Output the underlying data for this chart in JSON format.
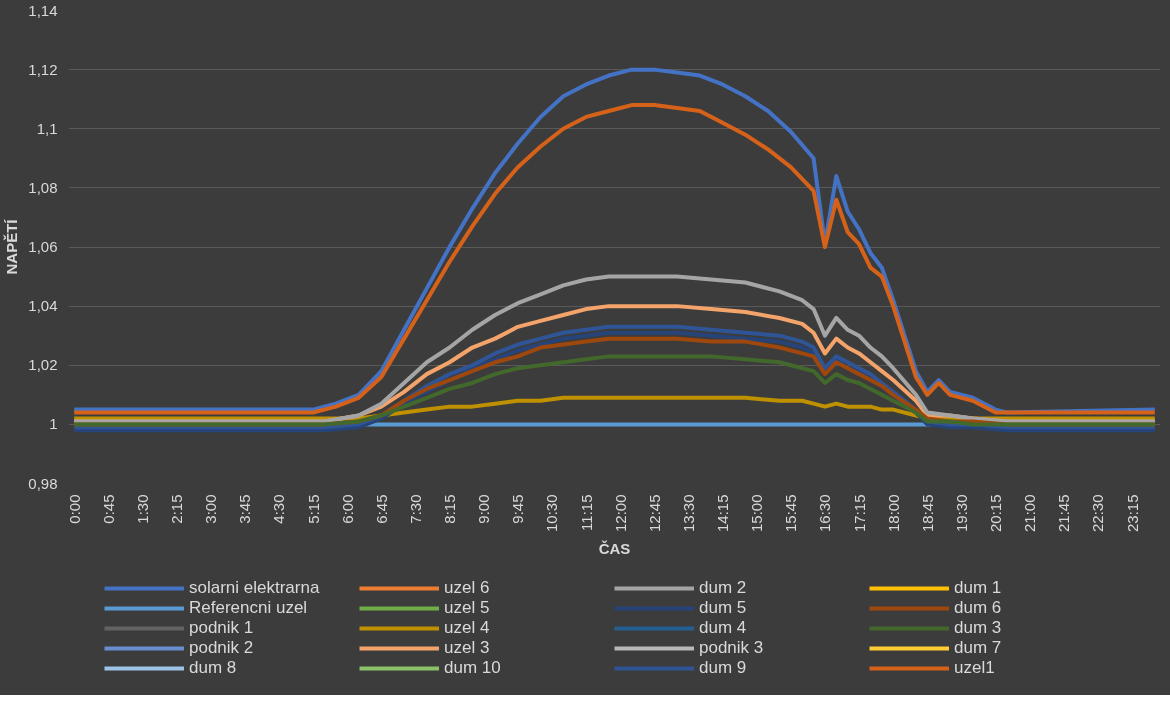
{
  "chart_data": {
    "type": "line",
    "xlabel": "ČAS",
    "ylabel": "NAPĚTÍ",
    "xlim": [
      -0.125,
      23.875
    ],
    "ylim": [
      0.98,
      1.14
    ],
    "yticks": [
      {
        "value": 0.98,
        "label": "0,98"
      },
      {
        "value": 1.0,
        "label": "1"
      },
      {
        "value": 1.02,
        "label": "1,02"
      },
      {
        "value": 1.04,
        "label": "1,04"
      },
      {
        "value": 1.06,
        "label": "1,06"
      },
      {
        "value": 1.08,
        "label": "1,08"
      },
      {
        "value": 1.1,
        "label": "1,1"
      },
      {
        "value": 1.12,
        "label": "1,12"
      },
      {
        "value": 1.14,
        "label": "1,14"
      }
    ],
    "xticks": [
      {
        "value": 0,
        "label": "0:00"
      },
      {
        "value": 0.75,
        "label": "0:45"
      },
      {
        "value": 1.5,
        "label": "1:30"
      },
      {
        "value": 2.25,
        "label": "2:15"
      },
      {
        "value": 3,
        "label": "3:00"
      },
      {
        "value": 3.75,
        "label": "3:45"
      },
      {
        "value": 4.5,
        "label": "4:30"
      },
      {
        "value": 5.25,
        "label": "5:15"
      },
      {
        "value": 6,
        "label": "6:00"
      },
      {
        "value": 6.75,
        "label": "6:45"
      },
      {
        "value": 7.5,
        "label": "7:30"
      },
      {
        "value": 8.25,
        "label": "8:15"
      },
      {
        "value": 9,
        "label": "9:00"
      },
      {
        "value": 9.75,
        "label": "9:45"
      },
      {
        "value": 10.5,
        "label": "10:30"
      },
      {
        "value": 11.25,
        "label": "11:15"
      },
      {
        "value": 12,
        "label": "12:00"
      },
      {
        "value": 12.75,
        "label": "12:45"
      },
      {
        "value": 13.5,
        "label": "13:30"
      },
      {
        "value": 14.25,
        "label": "14:15"
      },
      {
        "value": 15,
        "label": "15:00"
      },
      {
        "value": 15.75,
        "label": "15:45"
      },
      {
        "value": 16.5,
        "label": "16:30"
      },
      {
        "value": 17.25,
        "label": "17:15"
      },
      {
        "value": 18,
        "label": "18:00"
      },
      {
        "value": 18.75,
        "label": "18:45"
      },
      {
        "value": 19.5,
        "label": "19:30"
      },
      {
        "value": 20.25,
        "label": "20:15"
      },
      {
        "value": 21,
        "label": "21:00"
      },
      {
        "value": 21.75,
        "label": "21:45"
      },
      {
        "value": 22.5,
        "label": "22:30"
      },
      {
        "value": 23.25,
        "label": "23:15"
      }
    ],
    "grid": "y",
    "legend": "bottom",
    "marker": "none",
    "line_style": "solid",
    "series": [
      {
        "name": "solarni elektrarna",
        "color": "#4472c4",
        "x": [
          0,
          5.25,
          5.75,
          6.25,
          6.75,
          7.25,
          7.75,
          8.25,
          8.75,
          9.25,
          9.75,
          10.25,
          10.75,
          11.25,
          11.75,
          12.25,
          12.75,
          13.25,
          13.75,
          14.25,
          14.75,
          15.25,
          15.75,
          16.25,
          16.5,
          16.75,
          17,
          17.25,
          17.5,
          17.75,
          18,
          18.25,
          18.5,
          18.75,
          19,
          19.25,
          19.75,
          20.25,
          20.5,
          23.75
        ],
        "values": [
          1.005,
          1.005,
          1.007,
          1.01,
          1.018,
          1.032,
          1.046,
          1.06,
          1.073,
          1.085,
          1.095,
          1.104,
          1.111,
          1.115,
          1.118,
          1.12,
          1.12,
          1.119,
          1.118,
          1.115,
          1.111,
          1.106,
          1.099,
          1.09,
          1.061,
          1.084,
          1.072,
          1.066,
          1.058,
          1.053,
          1.042,
          1.03,
          1.018,
          1.011,
          1.015,
          1.011,
          1.009,
          1.005,
          1.004,
          1.005
        ]
      },
      {
        "name": "Referencni uzel",
        "color": "#5b9bd5",
        "x": [
          0,
          23.75
        ],
        "values": [
          1.0,
          1.0
        ]
      },
      {
        "name": "podnik 1",
        "color": "#636363"
      },
      {
        "name": "podnik 2",
        "color": "#698ed0"
      },
      {
        "name": "dum 8",
        "color": "#9dc3e6"
      },
      {
        "name": "uzel 6",
        "color": "#ed7d31"
      },
      {
        "name": "uzel 5",
        "color": "#70ad47"
      },
      {
        "name": "uzel 4",
        "color": "#bf9000",
        "x": [
          0,
          5.5,
          6.25,
          6.75,
          7.25,
          7.75,
          8.25,
          8.75,
          9.25,
          9.75,
          10.25,
          10.75,
          11.25,
          11.75,
          12.5,
          13.25,
          14,
          14.75,
          15.5,
          16,
          16.25,
          16.5,
          16.75,
          17,
          17.25,
          17.5,
          17.75,
          18,
          18.5,
          18.75,
          19.25,
          19.75,
          20.5,
          23.75
        ],
        "values": [
          1.002,
          1.002,
          1.002,
          1.003,
          1.004,
          1.005,
          1.006,
          1.006,
          1.007,
          1.008,
          1.008,
          1.009,
          1.009,
          1.009,
          1.009,
          1.009,
          1.009,
          1.009,
          1.008,
          1.008,
          1.007,
          1.006,
          1.007,
          1.006,
          1.006,
          1.006,
          1.005,
          1.005,
          1.003,
          1.002,
          1.002,
          1.002,
          1.002,
          1.002
        ]
      },
      {
        "name": "uzel 3",
        "color": "#f4a46a",
        "x": [
          0,
          5.5,
          6.25,
          6.75,
          7.25,
          7.75,
          8.25,
          8.75,
          9.25,
          9.75,
          10.25,
          10.75,
          11.25,
          11.75,
          12.5,
          13.25,
          14,
          14.75,
          15.5,
          16,
          16.25,
          16.5,
          16.75,
          17,
          17.25,
          17.5,
          17.75,
          18,
          18.5,
          18.75,
          19.25,
          19.75,
          20.5,
          23.75
        ],
        "values": [
          1.001,
          1.001,
          1.003,
          1.006,
          1.011,
          1.017,
          1.021,
          1.026,
          1.029,
          1.033,
          1.035,
          1.037,
          1.039,
          1.04,
          1.04,
          1.04,
          1.039,
          1.038,
          1.036,
          1.034,
          1.031,
          1.024,
          1.029,
          1.026,
          1.024,
          1.021,
          1.018,
          1.015,
          1.008,
          1.003,
          1.003,
          1.002,
          1.001,
          1.001
        ]
      },
      {
        "name": "dum 10",
        "color": "#8cc168"
      },
      {
        "name": "dum 2",
        "color": "#a5a5a5",
        "x": [
          0,
          5.5,
          6.25,
          6.75,
          7.25,
          7.75,
          8.25,
          8.75,
          9.25,
          9.75,
          10.25,
          10.75,
          11.25,
          11.75,
          12.5,
          13.25,
          14,
          14.75,
          15.5,
          16,
          16.25,
          16.5,
          16.75,
          17,
          17.25,
          17.5,
          17.75,
          18,
          18.5,
          18.75,
          19.25,
          19.75,
          20.5,
          23.75
        ],
        "values": [
          1.001,
          1.001,
          1.003,
          1.007,
          1.014,
          1.021,
          1.026,
          1.032,
          1.037,
          1.041,
          1.044,
          1.047,
          1.049,
          1.05,
          1.05,
          1.05,
          1.049,
          1.048,
          1.045,
          1.042,
          1.039,
          1.03,
          1.036,
          1.032,
          1.03,
          1.026,
          1.023,
          1.019,
          1.01,
          1.004,
          1.003,
          1.002,
          1.001,
          1.001
        ]
      },
      {
        "name": "dum 5",
        "color": "#264478",
        "x": [
          0,
          5.5,
          6.25,
          6.75,
          7.25,
          7.75,
          8.25,
          8.75,
          9.25,
          9.75,
          10.25,
          10.75,
          11.25,
          11.75,
          12.5,
          13.25,
          14,
          14.75,
          15.5,
          16,
          16.25,
          16.5,
          16.75,
          17,
          17.25,
          17.5,
          17.75,
          18,
          18.5,
          18.75,
          19.25,
          19.75,
          20.5,
          23.75
        ],
        "values": [
          0.998,
          0.998,
          0.999,
          1.002,
          1.007,
          1.011,
          1.015,
          1.019,
          1.022,
          1.025,
          1.027,
          1.029,
          1.03,
          1.031,
          1.031,
          1.031,
          1.03,
          1.029,
          1.028,
          1.026,
          1.024,
          1.018,
          1.022,
          1.019,
          1.018,
          1.015,
          1.013,
          1.01,
          1.004,
          1.0,
          0.999,
          0.999,
          0.998,
          0.998
        ]
      },
      {
        "name": "dum 4",
        "color": "#255e91"
      },
      {
        "name": "podnik 3",
        "color": "#b7b7b7"
      },
      {
        "name": "dum 9",
        "color": "#2f5597",
        "x": [
          0,
          5.5,
          6.25,
          6.75,
          7.25,
          7.75,
          8.25,
          8.75,
          9.25,
          9.75,
          10.25,
          10.75,
          11.25,
          11.75,
          12.5,
          13.25,
          14,
          14.75,
          15.5,
          16,
          16.25,
          16.5,
          16.75,
          17,
          17.25,
          17.5,
          17.75,
          18,
          18.5,
          18.75,
          19.25,
          19.75,
          20.5,
          23.75
        ],
        "values": [
          0.999,
          0.999,
          1.0,
          1.003,
          1.008,
          1.013,
          1.017,
          1.02,
          1.024,
          1.027,
          1.029,
          1.031,
          1.032,
          1.033,
          1.033,
          1.033,
          1.032,
          1.031,
          1.03,
          1.028,
          1.026,
          1.019,
          1.023,
          1.021,
          1.019,
          1.017,
          1.014,
          1.011,
          1.005,
          1.001,
          1.0,
          1.0,
          0.999,
          0.999
        ]
      },
      {
        "name": "dum 1",
        "color": "#ffc000"
      },
      {
        "name": "dum 6",
        "color": "#9e480e",
        "x": [
          0,
          5.5,
          6.25,
          6.75,
          7.25,
          7.75,
          8.25,
          8.75,
          9.25,
          9.75,
          10.25,
          10.75,
          11.25,
          11.75,
          12.5,
          13.25,
          14,
          14.75,
          15.5,
          16,
          16.25,
          16.5,
          16.75,
          17,
          17.25,
          17.5,
          17.75,
          18,
          18.5,
          18.75,
          19.25,
          19.75,
          20.5,
          23.75
        ],
        "values": [
          1.0,
          1.0,
          1.001,
          1.003,
          1.008,
          1.012,
          1.015,
          1.018,
          1.021,
          1.023,
          1.026,
          1.027,
          1.028,
          1.029,
          1.029,
          1.029,
          1.028,
          1.028,
          1.026,
          1.024,
          1.023,
          1.017,
          1.021,
          1.019,
          1.017,
          1.015,
          1.013,
          1.01,
          1.005,
          1.002,
          1.001,
          1.001,
          1.0,
          1.0
        ]
      },
      {
        "name": "dum 3",
        "color": "#43682b",
        "x": [
          0,
          5.5,
          6.25,
          6.75,
          7.25,
          7.75,
          8.25,
          8.75,
          9.25,
          9.75,
          10.25,
          10.75,
          11.25,
          11.75,
          12.5,
          13.25,
          14,
          14.75,
          15.5,
          16,
          16.25,
          16.5,
          16.75,
          17,
          17.25,
          17.5,
          17.75,
          18,
          18.5,
          18.75,
          19.25,
          19.75,
          20.5,
          23.75
        ],
        "values": [
          1.0,
          1.0,
          1.001,
          1.003,
          1.006,
          1.009,
          1.012,
          1.014,
          1.017,
          1.019,
          1.02,
          1.021,
          1.022,
          1.023,
          1.023,
          1.023,
          1.023,
          1.022,
          1.021,
          1.019,
          1.018,
          1.014,
          1.017,
          1.015,
          1.014,
          1.012,
          1.01,
          1.008,
          1.004,
          1.001,
          1.001,
          1.0,
          1.0,
          1.0
        ]
      },
      {
        "name": "dum 7",
        "color": "#ffcd33"
      },
      {
        "name": "uzel1",
        "color": "#d6621a",
        "x": [
          0,
          5.25,
          5.75,
          6.25,
          6.75,
          7.25,
          7.75,
          8.25,
          8.75,
          9.25,
          9.75,
          10.25,
          10.75,
          11.25,
          11.75,
          12.25,
          12.75,
          13.25,
          13.75,
          14.25,
          14.75,
          15.25,
          15.75,
          16.25,
          16.5,
          16.75,
          17,
          17.25,
          17.5,
          17.75,
          18,
          18.25,
          18.5,
          18.75,
          19,
          19.25,
          19.75,
          20.25,
          23.75
        ],
        "values": [
          1.004,
          1.004,
          1.006,
          1.009,
          1.016,
          1.029,
          1.042,
          1.055,
          1.067,
          1.078,
          1.087,
          1.094,
          1.1,
          1.104,
          1.106,
          1.108,
          1.108,
          1.107,
          1.106,
          1.102,
          1.098,
          1.093,
          1.087,
          1.079,
          1.06,
          1.076,
          1.065,
          1.061,
          1.053,
          1.05,
          1.04,
          1.028,
          1.016,
          1.01,
          1.014,
          1.01,
          1.008,
          1.004,
          1.004
        ]
      }
    ]
  }
}
